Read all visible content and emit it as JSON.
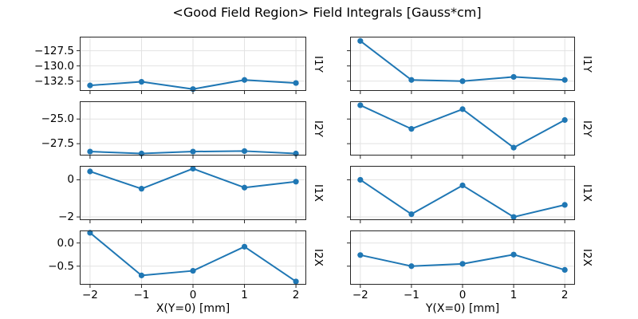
{
  "figure": {
    "title": "<Good Field Region> Field Integrals [Gauss*cm]"
  },
  "colors": {
    "line": "#1f77b4",
    "grid": "#e2e2e2",
    "spine": "#262626",
    "tick": "#262626",
    "text": "#000000"
  },
  "chart_data": {
    "type": "line",
    "title": "<Good Field Region> Field Integrals [Gauss*cm]",
    "grid": true,
    "legend": "none",
    "marker": "circle",
    "x": [
      -2,
      -1,
      0,
      1,
      2
    ],
    "xlim": [
      -2.2,
      2.2
    ],
    "x_ticks": [
      -2,
      -1,
      0,
      1,
      2
    ],
    "x_tick_labels": [
      "−2",
      "−1",
      "0",
      "1",
      "2"
    ],
    "columns": [
      {
        "xlabel": "X(Y=0) [mm]"
      },
      {
        "xlabel": "Y(X=0) [mm]"
      }
    ],
    "rows": [
      {
        "ylabel": "I1Y",
        "ylim": [
          -134.1,
          -125.2
        ],
        "y_ticks": [
          -127.5,
          -130.0,
          -132.5
        ],
        "y_tick_labels": [
          "−127.5",
          "−130.0",
          "−132.5"
        ],
        "series": [
          {
            "name": "I1Y vs X",
            "values": [
              -133.2,
              -132.6,
              -133.8,
              -132.3,
              -132.8
            ]
          },
          {
            "name": "I1Y vs Y",
            "values": [
              -125.9,
              -132.3,
              -132.5,
              -131.8,
              -132.3
            ]
          }
        ]
      },
      {
        "ylabel": "I2Y",
        "ylim": [
          -28.7,
          -23.2
        ],
        "y_ticks": [
          -25.0,
          -27.5
        ],
        "y_tick_labels": [
          "−25.0",
          "−27.5"
        ],
        "series": [
          {
            "name": "I2Y vs X",
            "values": [
              -28.3,
              -28.5,
              -28.3,
              -28.25,
              -28.5
            ]
          },
          {
            "name": "I2Y vs Y",
            "values": [
              -23.6,
              -26.0,
              -24.0,
              -27.9,
              -25.1
            ]
          }
        ]
      },
      {
        "ylabel": "I1X",
        "ylim": [
          -2.17,
          0.75
        ],
        "y_ticks": [
          0,
          -2
        ],
        "y_tick_labels": [
          "0",
          "−2"
        ],
        "series": [
          {
            "name": "I1X vs X",
            "values": [
              0.45,
              -0.48,
              0.6,
              -0.42,
              -0.1
            ]
          },
          {
            "name": "I1X vs Y",
            "values": [
              0.0,
              -1.85,
              -0.3,
              -2.0,
              -1.35
            ]
          }
        ]
      },
      {
        "ylabel": "I2X",
        "ylim": [
          -0.9,
          0.27
        ],
        "y_ticks": [
          0.0,
          -0.5
        ],
        "y_tick_labels": [
          "0.0",
          "−0.5"
        ],
        "series": [
          {
            "name": "I2X vs X",
            "values": [
              0.22,
              -0.7,
              -0.6,
              -0.08,
              -0.83
            ]
          },
          {
            "name": "I2X vs Y",
            "values": [
              -0.26,
              -0.5,
              -0.45,
              -0.25,
              -0.58
            ]
          }
        ]
      }
    ]
  }
}
